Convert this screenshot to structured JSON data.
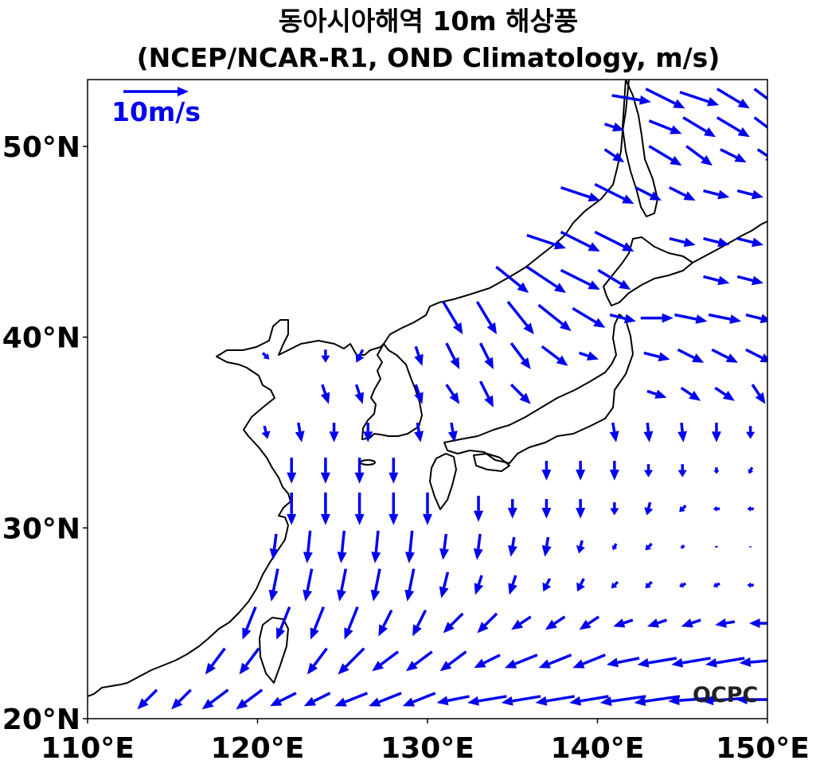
{
  "title": {
    "line1": "동아시아해역 10m 해상풍",
    "line2": "(NCEP/NCAR-R1, OND Climatology, m/s)"
  },
  "reference_vector": {
    "label": "10m/s",
    "speed": 10
  },
  "logo": "OCPC",
  "colors": {
    "arrow": "#0000ee",
    "coastline": "#000000",
    "frame": "#000000"
  },
  "chart_data": {
    "type": "quiver",
    "xlim": [
      110,
      150
    ],
    "ylim": [
      20,
      53.5
    ],
    "xticks": [
      110,
      120,
      130,
      140,
      150
    ],
    "yticks": [
      20,
      30,
      40,
      50
    ],
    "xtick_labels": [
      "110°E",
      "120°E",
      "130°E",
      "140°E",
      "150°E"
    ],
    "ytick_labels": [
      "20°N",
      "30°N",
      "40°N",
      "50°N"
    ],
    "grid": false,
    "units": "m/s",
    "vectors": [
      {
        "lon": 142,
        "lat": 52.5,
        "u": 6,
        "v": -1
      },
      {
        "lon": 144,
        "lat": 52.5,
        "u": 6,
        "v": -3
      },
      {
        "lon": 146,
        "lat": 52.5,
        "u": 6,
        "v": -2
      },
      {
        "lon": 148,
        "lat": 52.5,
        "u": 5,
        "v": -3
      },
      {
        "lon": 150,
        "lat": 52.5,
        "u": 4,
        "v": -3
      },
      {
        "lon": 141,
        "lat": 51,
        "u": 3,
        "v": -1
      },
      {
        "lon": 144,
        "lat": 51,
        "u": 5,
        "v": -2
      },
      {
        "lon": 146,
        "lat": 51,
        "u": 5,
        "v": -3
      },
      {
        "lon": 148,
        "lat": 51,
        "u": 5,
        "v": -3
      },
      {
        "lon": 150,
        "lat": 51,
        "u": 4,
        "v": -3
      },
      {
        "lon": 141,
        "lat": 49.5,
        "u": 3,
        "v": -2
      },
      {
        "lon": 144,
        "lat": 49.5,
        "u": 5,
        "v": -3
      },
      {
        "lon": 146,
        "lat": 49.5,
        "u": 4,
        "v": -3
      },
      {
        "lon": 148,
        "lat": 49.5,
        "u": 4,
        "v": -2
      },
      {
        "lon": 150,
        "lat": 49.5,
        "u": 3,
        "v": -2
      },
      {
        "lon": 139,
        "lat": 47.5,
        "u": 6,
        "v": -2
      },
      {
        "lon": 141,
        "lat": 47.5,
        "u": 6,
        "v": -3
      },
      {
        "lon": 143,
        "lat": 47.5,
        "u": 4,
        "v": -2
      },
      {
        "lon": 145,
        "lat": 47.5,
        "u": 4,
        "v": -2
      },
      {
        "lon": 147,
        "lat": 47.5,
        "u": 4,
        "v": -1
      },
      {
        "lon": 149,
        "lat": 47.5,
        "u": 4,
        "v": -1
      },
      {
        "lon": 137,
        "lat": 45,
        "u": 6,
        "v": -2
      },
      {
        "lon": 139,
        "lat": 45,
        "u": 6,
        "v": -3
      },
      {
        "lon": 141,
        "lat": 45,
        "u": 6,
        "v": -3
      },
      {
        "lon": 145,
        "lat": 45,
        "u": 4,
        "v": -1
      },
      {
        "lon": 147,
        "lat": 45,
        "u": 4,
        "v": -1
      },
      {
        "lon": 149,
        "lat": 45,
        "u": 4,
        "v": -1
      },
      {
        "lon": 135,
        "lat": 43,
        "u": 5,
        "v": -4
      },
      {
        "lon": 137,
        "lat": 43,
        "u": 6,
        "v": -4
      },
      {
        "lon": 139,
        "lat": 43,
        "u": 6,
        "v": -3
      },
      {
        "lon": 141,
        "lat": 43,
        "u": 5,
        "v": -3
      },
      {
        "lon": 147,
        "lat": 43,
        "u": 4,
        "v": -1
      },
      {
        "lon": 149,
        "lat": 43,
        "u": 4,
        "v": -1
      },
      {
        "lon": 131.5,
        "lat": 41,
        "u": 3,
        "v": -5
      },
      {
        "lon": 133.5,
        "lat": 41,
        "u": 3,
        "v": -5
      },
      {
        "lon": 135.5,
        "lat": 41,
        "u": 4,
        "v": -5
      },
      {
        "lon": 137.5,
        "lat": 41,
        "u": 5,
        "v": -4
      },
      {
        "lon": 139.5,
        "lat": 41,
        "u": 5,
        "v": -3
      },
      {
        "lon": 141.5,
        "lat": 41,
        "u": 4,
        "v": -1
      },
      {
        "lon": 143.5,
        "lat": 41,
        "u": 5,
        "v": 0
      },
      {
        "lon": 145.5,
        "lat": 41,
        "u": 5,
        "v": -1
      },
      {
        "lon": 147.5,
        "lat": 41,
        "u": 5,
        "v": -1
      },
      {
        "lon": 149.5,
        "lat": 41,
        "u": 4,
        "v": -1
      },
      {
        "lon": 120.5,
        "lat": 39,
        "u": 1,
        "v": -1
      },
      {
        "lon": 124,
        "lat": 39,
        "u": 0,
        "v": -2
      },
      {
        "lon": 126,
        "lat": 39,
        "u": -1,
        "v": -2
      },
      {
        "lon": 129.5,
        "lat": 39,
        "u": 1,
        "v": -3
      },
      {
        "lon": 131.5,
        "lat": 39,
        "u": 2,
        "v": -4
      },
      {
        "lon": 133.5,
        "lat": 39,
        "u": 2,
        "v": -4
      },
      {
        "lon": 135.5,
        "lat": 39,
        "u": 3,
        "v": -4
      },
      {
        "lon": 137.5,
        "lat": 39,
        "u": 4,
        "v": -3
      },
      {
        "lon": 139.5,
        "lat": 39,
        "u": 3,
        "v": -1
      },
      {
        "lon": 143.5,
        "lat": 39,
        "u": 4,
        "v": -1
      },
      {
        "lon": 145.5,
        "lat": 39,
        "u": 4,
        "v": -2
      },
      {
        "lon": 147.5,
        "lat": 39,
        "u": 4,
        "v": -2
      },
      {
        "lon": 149.5,
        "lat": 39,
        "u": 4,
        "v": -2
      },
      {
        "lon": 124,
        "lat": 37,
        "u": 1,
        "v": -3
      },
      {
        "lon": 126,
        "lat": 37,
        "u": 1,
        "v": -3
      },
      {
        "lon": 129.5,
        "lat": 37,
        "u": 1,
        "v": -3
      },
      {
        "lon": 131.5,
        "lat": 37,
        "u": 2,
        "v": -3
      },
      {
        "lon": 133.5,
        "lat": 37,
        "u": 2,
        "v": -4
      },
      {
        "lon": 135.5,
        "lat": 37,
        "u": 3,
        "v": -3
      },
      {
        "lon": 143.5,
        "lat": 37,
        "u": 3,
        "v": -1
      },
      {
        "lon": 145.5,
        "lat": 37,
        "u": 3,
        "v": -2
      },
      {
        "lon": 147.5,
        "lat": 37,
        "u": 3,
        "v": -2
      },
      {
        "lon": 149.5,
        "lat": 37,
        "u": 2,
        "v": -3
      },
      {
        "lon": 120.5,
        "lat": 35,
        "u": 0.5,
        "v": -2
      },
      {
        "lon": 122.5,
        "lat": 35,
        "u": 0.5,
        "v": -3
      },
      {
        "lon": 124.5,
        "lat": 35,
        "u": 0,
        "v": -3
      },
      {
        "lon": 126.5,
        "lat": 35,
        "u": 0,
        "v": -3
      },
      {
        "lon": 129.5,
        "lat": 35,
        "u": 0.5,
        "v": -3
      },
      {
        "lon": 131.5,
        "lat": 35,
        "u": 0.5,
        "v": -3
      },
      {
        "lon": 141,
        "lat": 35,
        "u": 0.5,
        "v": -3
      },
      {
        "lon": 143,
        "lat": 35,
        "u": 0.3,
        "v": -3
      },
      {
        "lon": 145,
        "lat": 35,
        "u": 0.3,
        "v": -3
      },
      {
        "lon": 147,
        "lat": 35,
        "u": 0,
        "v": -3
      },
      {
        "lon": 149,
        "lat": 35,
        "u": 0,
        "v": -2
      },
      {
        "lon": 122,
        "lat": 33,
        "u": 0,
        "v": -4
      },
      {
        "lon": 124,
        "lat": 33,
        "u": 0,
        "v": -4
      },
      {
        "lon": 126,
        "lat": 33,
        "u": 0,
        "v": -4
      },
      {
        "lon": 128,
        "lat": 33,
        "u": 0,
        "v": -4
      },
      {
        "lon": 137,
        "lat": 33,
        "u": 0,
        "v": -3
      },
      {
        "lon": 139,
        "lat": 33,
        "u": 0,
        "v": -3
      },
      {
        "lon": 141,
        "lat": 33,
        "u": 0,
        "v": -3
      },
      {
        "lon": 143,
        "lat": 33,
        "u": 0,
        "v": -2
      },
      {
        "lon": 145,
        "lat": 33,
        "u": 0,
        "v": -2
      },
      {
        "lon": 147,
        "lat": 33,
        "u": 0,
        "v": -1
      },
      {
        "lon": 149,
        "lat": 33,
        "u": -0.5,
        "v": -1
      },
      {
        "lon": 122,
        "lat": 31,
        "u": 0,
        "v": -5
      },
      {
        "lon": 124,
        "lat": 31,
        "u": 0,
        "v": -5
      },
      {
        "lon": 126,
        "lat": 31,
        "u": 0,
        "v": -5
      },
      {
        "lon": 128,
        "lat": 31,
        "u": 0,
        "v": -5
      },
      {
        "lon": 130,
        "lat": 31,
        "u": 0,
        "v": -5
      },
      {
        "lon": 133,
        "lat": 31,
        "u": 0,
        "v": -4
      },
      {
        "lon": 135,
        "lat": 31,
        "u": 0,
        "v": -3
      },
      {
        "lon": 137,
        "lat": 31,
        "u": 0,
        "v": -3
      },
      {
        "lon": 139,
        "lat": 31,
        "u": 0,
        "v": -3
      },
      {
        "lon": 141,
        "lat": 31,
        "u": 0,
        "v": -2
      },
      {
        "lon": 143,
        "lat": 31,
        "u": -0.5,
        "v": -2
      },
      {
        "lon": 145,
        "lat": 31,
        "u": -1,
        "v": -1
      },
      {
        "lon": 147,
        "lat": 31,
        "u": -1,
        "v": 0
      },
      {
        "lon": 149,
        "lat": 31,
        "u": -1,
        "v": 0
      },
      {
        "lon": 121,
        "lat": 29,
        "u": -0.5,
        "v": -4
      },
      {
        "lon": 123,
        "lat": 29,
        "u": -0.5,
        "v": -5
      },
      {
        "lon": 125,
        "lat": 29,
        "u": -0.5,
        "v": -5
      },
      {
        "lon": 127,
        "lat": 29,
        "u": -0.5,
        "v": -5
      },
      {
        "lon": 129,
        "lat": 29,
        "u": -0.5,
        "v": -5
      },
      {
        "lon": 131,
        "lat": 29,
        "u": -0.5,
        "v": -4
      },
      {
        "lon": 133,
        "lat": 29,
        "u": -0.5,
        "v": -4
      },
      {
        "lon": 135,
        "lat": 29,
        "u": -0.5,
        "v": -3
      },
      {
        "lon": 137,
        "lat": 29,
        "u": -0.5,
        "v": -3
      },
      {
        "lon": 139,
        "lat": 29,
        "u": -0.5,
        "v": -2
      },
      {
        "lon": 141,
        "lat": 29,
        "u": -0.5,
        "v": -1
      },
      {
        "lon": 143,
        "lat": 29,
        "u": -1,
        "v": -1
      },
      {
        "lon": 145,
        "lat": 29,
        "u": -0.5,
        "v": -0.5
      },
      {
        "lon": 147,
        "lat": 29,
        "u": 0,
        "v": -0.3
      },
      {
        "lon": 149,
        "lat": 29,
        "u": 0,
        "v": -0.2
      },
      {
        "lon": 121,
        "lat": 27,
        "u": -1,
        "v": -5
      },
      {
        "lon": 123,
        "lat": 27,
        "u": -1,
        "v": -5
      },
      {
        "lon": 125,
        "lat": 27,
        "u": -1,
        "v": -5
      },
      {
        "lon": 127,
        "lat": 27,
        "u": -1,
        "v": -5
      },
      {
        "lon": 129,
        "lat": 27,
        "u": -1,
        "v": -5
      },
      {
        "lon": 131,
        "lat": 27,
        "u": -1,
        "v": -4
      },
      {
        "lon": 133,
        "lat": 27,
        "u": -1,
        "v": -3
      },
      {
        "lon": 135,
        "lat": 27,
        "u": -1,
        "v": -3
      },
      {
        "lon": 137,
        "lat": 27,
        "u": -1,
        "v": -2
      },
      {
        "lon": 139,
        "lat": 27,
        "u": -1,
        "v": -2
      },
      {
        "lon": 141,
        "lat": 27,
        "u": -1,
        "v": -1
      },
      {
        "lon": 143,
        "lat": 27,
        "u": -1,
        "v": -1
      },
      {
        "lon": 145,
        "lat": 27,
        "u": -1,
        "v": -0.5
      },
      {
        "lon": 147,
        "lat": 27,
        "u": -1,
        "v": -0.5
      },
      {
        "lon": 149,
        "lat": 27,
        "u": -1,
        "v": 0
      },
      {
        "lon": 119.5,
        "lat": 25,
        "u": -2,
        "v": -5
      },
      {
        "lon": 121.5,
        "lat": 25,
        "u": -2,
        "v": -5
      },
      {
        "lon": 123.5,
        "lat": 25,
        "u": -2,
        "v": -5
      },
      {
        "lon": 125.5,
        "lat": 25,
        "u": -2,
        "v": -5
      },
      {
        "lon": 127.5,
        "lat": 25,
        "u": -2,
        "v": -4
      },
      {
        "lon": 129.5,
        "lat": 25,
        "u": -2,
        "v": -4
      },
      {
        "lon": 131.5,
        "lat": 25,
        "u": -3,
        "v": -3
      },
      {
        "lon": 133.5,
        "lat": 25,
        "u": -3,
        "v": -3
      },
      {
        "lon": 135.5,
        "lat": 25,
        "u": -3,
        "v": -2
      },
      {
        "lon": 137.5,
        "lat": 25,
        "u": -3,
        "v": -2
      },
      {
        "lon": 139.5,
        "lat": 25,
        "u": -3,
        "v": -2
      },
      {
        "lon": 141.5,
        "lat": 25,
        "u": -3,
        "v": -1
      },
      {
        "lon": 143.5,
        "lat": 25,
        "u": -3,
        "v": -1
      },
      {
        "lon": 145.5,
        "lat": 25,
        "u": -3,
        "v": -1
      },
      {
        "lon": 147.5,
        "lat": 25,
        "u": -3,
        "v": -0.5
      },
      {
        "lon": 149.5,
        "lat": 25,
        "u": -3,
        "v": 0
      },
      {
        "lon": 117.5,
        "lat": 23,
        "u": -3,
        "v": -4
      },
      {
        "lon": 119.5,
        "lat": 23,
        "u": -3,
        "v": -4
      },
      {
        "lon": 123.5,
        "lat": 23,
        "u": -3,
        "v": -4
      },
      {
        "lon": 125.5,
        "lat": 23,
        "u": -4,
        "v": -4
      },
      {
        "lon": 127.5,
        "lat": 23,
        "u": -4,
        "v": -3
      },
      {
        "lon": 129.5,
        "lat": 23,
        "u": -4,
        "v": -3
      },
      {
        "lon": 131.5,
        "lat": 23,
        "u": -4,
        "v": -3
      },
      {
        "lon": 133.5,
        "lat": 23,
        "u": -4,
        "v": -2
      },
      {
        "lon": 135.5,
        "lat": 23,
        "u": -5,
        "v": -2
      },
      {
        "lon": 137.5,
        "lat": 23,
        "u": -5,
        "v": -2
      },
      {
        "lon": 139.5,
        "lat": 23,
        "u": -5,
        "v": -2
      },
      {
        "lon": 141.5,
        "lat": 23,
        "u": -5,
        "v": -1
      },
      {
        "lon": 143.5,
        "lat": 23,
        "u": -6,
        "v": -1
      },
      {
        "lon": 145.5,
        "lat": 23,
        "u": -6,
        "v": -1
      },
      {
        "lon": 147.5,
        "lat": 23,
        "u": -6,
        "v": -1
      },
      {
        "lon": 149.5,
        "lat": 23,
        "u": -6,
        "v": -0.5
      },
      {
        "lon": 113.5,
        "lat": 21,
        "u": -3,
        "v": -3
      },
      {
        "lon": 115.5,
        "lat": 21,
        "u": -3,
        "v": -3
      },
      {
        "lon": 117.5,
        "lat": 21,
        "u": -4,
        "v": -3
      },
      {
        "lon": 119.5,
        "lat": 21,
        "u": -4,
        "v": -3
      },
      {
        "lon": 121.5,
        "lat": 21,
        "u": -4,
        "v": -2
      },
      {
        "lon": 123.5,
        "lat": 21,
        "u": -4,
        "v": -2
      },
      {
        "lon": 125.5,
        "lat": 21,
        "u": -5,
        "v": -2
      },
      {
        "lon": 127.5,
        "lat": 21,
        "u": -5,
        "v": -2
      },
      {
        "lon": 129.5,
        "lat": 21,
        "u": -5,
        "v": -2
      },
      {
        "lon": 131.5,
        "lat": 21,
        "u": -5,
        "v": -1
      },
      {
        "lon": 133.5,
        "lat": 21,
        "u": -6,
        "v": -1
      },
      {
        "lon": 135.5,
        "lat": 21,
        "u": -6,
        "v": -1
      },
      {
        "lon": 137.5,
        "lat": 21,
        "u": -6,
        "v": -1
      },
      {
        "lon": 139.5,
        "lat": 21,
        "u": -6,
        "v": -1
      },
      {
        "lon": 141.5,
        "lat": 21,
        "u": -7,
        "v": -1
      },
      {
        "lon": 143.5,
        "lat": 21,
        "u": -7,
        "v": -1
      },
      {
        "lon": 145.5,
        "lat": 21,
        "u": -7,
        "v": -0.5
      },
      {
        "lon": 147.5,
        "lat": 21,
        "u": -7,
        "v": -0.5
      },
      {
        "lon": 149.5,
        "lat": 21,
        "u": -7,
        "v": 0
      }
    ]
  }
}
